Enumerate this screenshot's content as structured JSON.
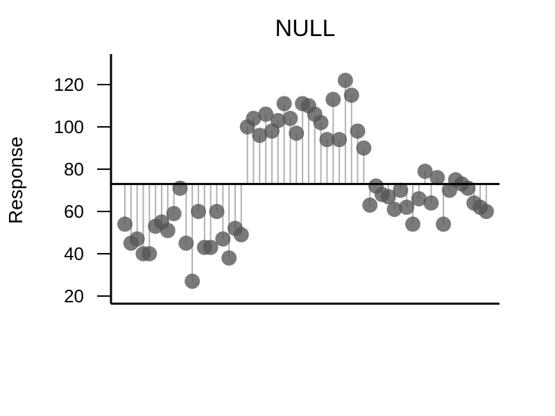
{
  "chart_data": {
    "type": "scatter",
    "title": "NULL",
    "xlabel": "",
    "ylabel": "Response",
    "ylim": [
      20,
      130
    ],
    "yticks": [
      "20",
      "40",
      "60",
      "80",
      "100",
      "120"
    ],
    "reference_line": 73,
    "grid": false,
    "point_color": "#555555",
    "stem_color": "#b0b0b0",
    "series": [
      {
        "values": [
          54,
          45,
          47,
          40,
          40,
          53,
          55,
          51,
          59,
          71,
          45,
          27,
          60,
          43,
          43,
          60,
          47,
          38,
          52,
          49,
          100,
          104,
          96,
          106,
          98,
          103,
          111,
          104,
          97,
          111,
          110,
          106,
          102,
          94,
          113,
          94,
          122,
          115,
          98,
          90,
          63,
          72,
          68,
          67,
          61,
          70,
          62,
          54,
          66,
          79,
          64,
          76,
          54,
          70,
          75,
          73,
          71,
          64,
          62,
          60
        ]
      }
    ]
  }
}
